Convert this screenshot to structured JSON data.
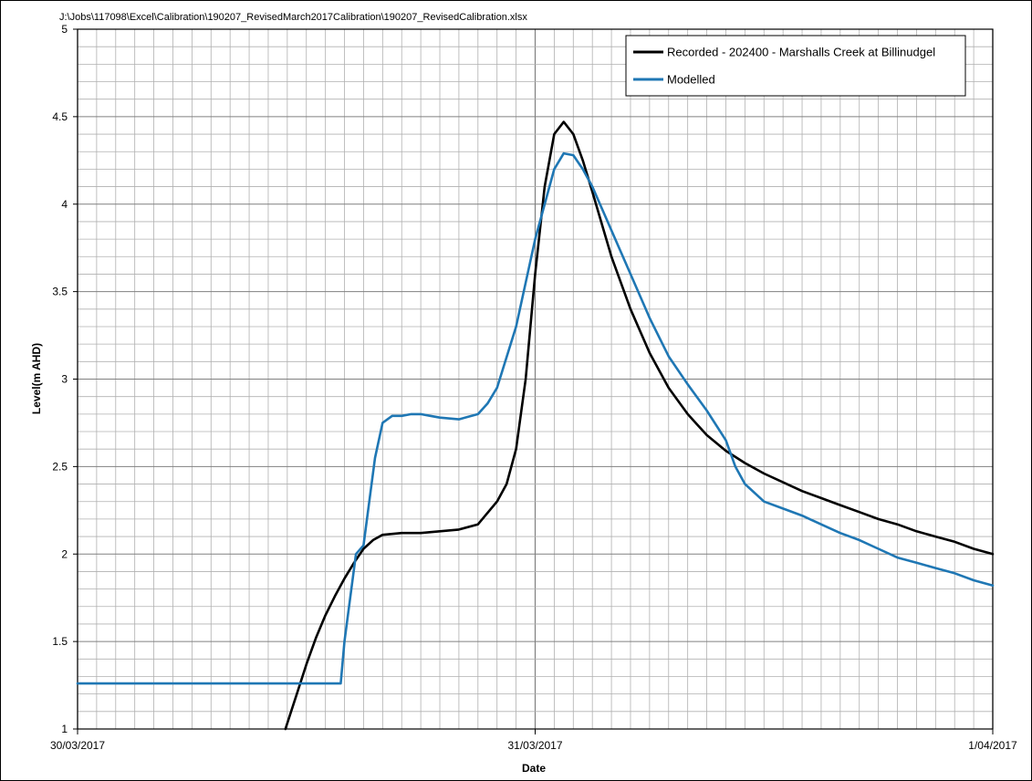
{
  "file_path": "J:\\Jobs\\117098\\Excel\\Calibration\\190207_RevisedMarch2017Calibration\\190207_RevisedCalibration.xlsx",
  "chart_data": {
    "type": "line",
    "xlabel": "Date",
    "ylabel": "Level(m AHD)",
    "x_tick_labels": [
      "30/03/2017",
      "31/03/2017",
      "1/04/2017"
    ],
    "x_unit": "hours since 30/03/2017 00:00",
    "xlim": [
      0,
      48
    ],
    "ylim": [
      1,
      5
    ],
    "y_ticks": [
      1,
      1.5,
      2,
      2.5,
      3,
      3.5,
      4,
      4.5,
      5
    ],
    "y_tick_labels": [
      "1",
      "1.5",
      "2",
      "2.5",
      "3",
      "3.5",
      "4",
      "4.5",
      "5"
    ],
    "grid": true,
    "legend_position": "top-right",
    "colors": {
      "recorded": "#000000",
      "modelled": "#1f77b4",
      "grid": "#b0b0b0"
    },
    "series": [
      {
        "name": "Recorded - 202400 - Marshalls Creek at Billinudgel",
        "color": "#000000",
        "x": [
          10.9,
          11.5,
          12,
          12.5,
          13,
          13.5,
          14,
          14.5,
          15,
          15.5,
          16,
          17,
          18,
          19,
          20,
          21,
          22,
          22.5,
          23,
          23.5,
          24,
          24.5,
          25,
          25.5,
          26,
          26.5,
          27,
          28,
          29,
          30,
          31,
          32,
          33,
          34,
          35,
          36,
          37,
          38,
          39,
          40,
          41,
          42,
          43,
          44,
          45,
          46,
          47,
          48
        ],
        "y": [
          1.0,
          1.2,
          1.37,
          1.52,
          1.65,
          1.76,
          1.86,
          1.95,
          2.03,
          2.08,
          2.11,
          2.12,
          2.12,
          2.13,
          2.14,
          2.17,
          2.3,
          2.4,
          2.6,
          3.0,
          3.6,
          4.1,
          4.4,
          4.47,
          4.4,
          4.25,
          4.07,
          3.7,
          3.4,
          3.15,
          2.95,
          2.8,
          2.68,
          2.59,
          2.52,
          2.46,
          2.41,
          2.36,
          2.32,
          2.28,
          2.24,
          2.2,
          2.17,
          2.13,
          2.1,
          2.07,
          2.03,
          2.0
        ]
      },
      {
        "name": "Modelled",
        "color": "#1f77b4",
        "x": [
          0,
          13,
          13.8,
          14.0,
          14.3,
          14.6,
          15.0,
          15.3,
          15.6,
          16.0,
          16.5,
          17.0,
          17.5,
          18.0,
          18.5,
          19.0,
          20.0,
          21.0,
          21.5,
          22.0,
          23.0,
          24.0,
          25.0,
          25.5,
          26.0,
          26.5,
          27.0,
          28.0,
          29.0,
          30.0,
          31.0,
          32.0,
          33.0,
          34.0,
          34.5,
          35.0,
          36.0,
          37.0,
          38.0,
          39.0,
          40.0,
          41.0,
          42.0,
          43.0,
          44.0,
          45.0,
          46.0,
          47.0,
          48.0
        ],
        "y": [
          1.26,
          1.26,
          1.26,
          1.5,
          1.75,
          2.0,
          2.05,
          2.3,
          2.55,
          2.75,
          2.79,
          2.79,
          2.8,
          2.8,
          2.79,
          2.78,
          2.77,
          2.8,
          2.86,
          2.95,
          3.3,
          3.8,
          4.2,
          4.29,
          4.28,
          4.2,
          4.1,
          3.85,
          3.6,
          3.35,
          3.13,
          2.97,
          2.82,
          2.65,
          2.5,
          2.4,
          2.3,
          2.26,
          2.22,
          2.17,
          2.12,
          2.08,
          2.03,
          1.98,
          1.95,
          1.92,
          1.89,
          1.85,
          1.82
        ]
      }
    ]
  }
}
